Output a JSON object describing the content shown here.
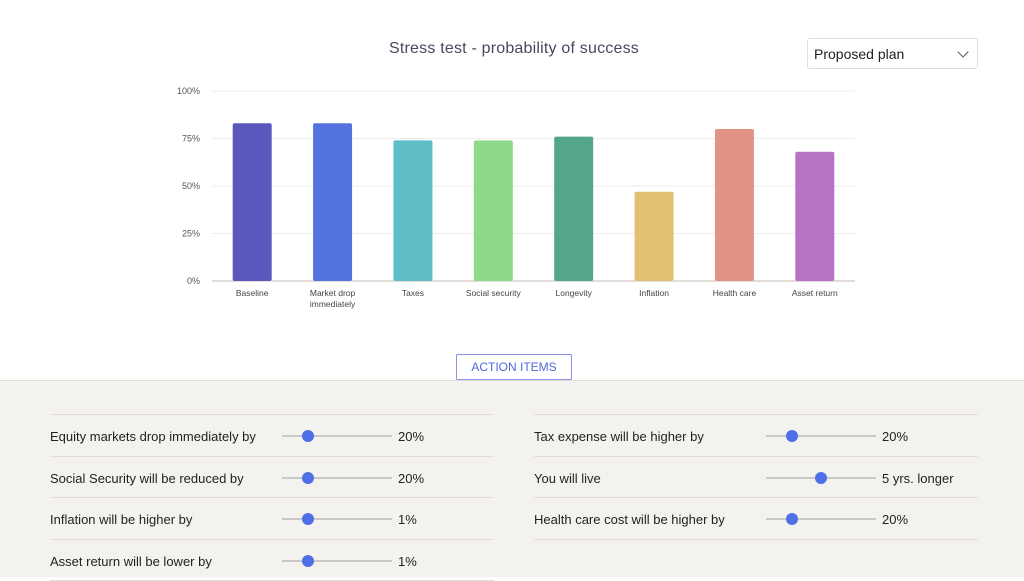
{
  "header": {
    "title": "Stress test - probability of success",
    "plan_select": {
      "selected": "Proposed plan",
      "icon": "chevron-down-icon"
    }
  },
  "chart_data": {
    "type": "bar",
    "title": "Stress test - probability of success",
    "xlabel": "",
    "ylabel": "",
    "ylim": [
      0,
      100
    ],
    "yticks": [
      "0%",
      "25%",
      "50%",
      "75%",
      "100%"
    ],
    "ytick_values": [
      0,
      25,
      50,
      75,
      100
    ],
    "grid": true,
    "categories": [
      [
        "Baseline"
      ],
      [
        "Market drop",
        "immediately"
      ],
      [
        "Taxes"
      ],
      [
        "Social security"
      ],
      [
        "Longevity"
      ],
      [
        "Inflation"
      ],
      [
        "Health care"
      ],
      [
        "Asset return"
      ]
    ],
    "values": [
      83,
      83,
      74,
      74,
      76,
      47,
      80,
      68
    ],
    "colors": [
      "#5b57bd",
      "#5573df",
      "#5fbdc8",
      "#8ed98b",
      "#53a68b",
      "#e2c072",
      "#e19385",
      "#b872c5"
    ]
  },
  "action_items_button": "ACTION ITEMS",
  "accent_color": "#4f6fe6",
  "sliders": {
    "left": [
      {
        "label": "Equity markets drop immediately by",
        "value": "20%",
        "fraction": 0.24
      },
      {
        "label": "Social Security will be reduced by",
        "value": "20%",
        "fraction": 0.24
      },
      {
        "label": "Inflation will be higher by",
        "value": "1%",
        "fraction": 0.24
      },
      {
        "label": "Asset return will be lower by",
        "value": "1%",
        "fraction": 0.24
      }
    ],
    "right": [
      {
        "label": "Tax expense will be higher by",
        "value": "20%",
        "fraction": 0.24
      },
      {
        "label": "You will live",
        "value": "5 yrs. longer",
        "fraction": 0.5
      },
      {
        "label": "Health care cost will be higher by",
        "value": "20%",
        "fraction": 0.24
      }
    ]
  }
}
